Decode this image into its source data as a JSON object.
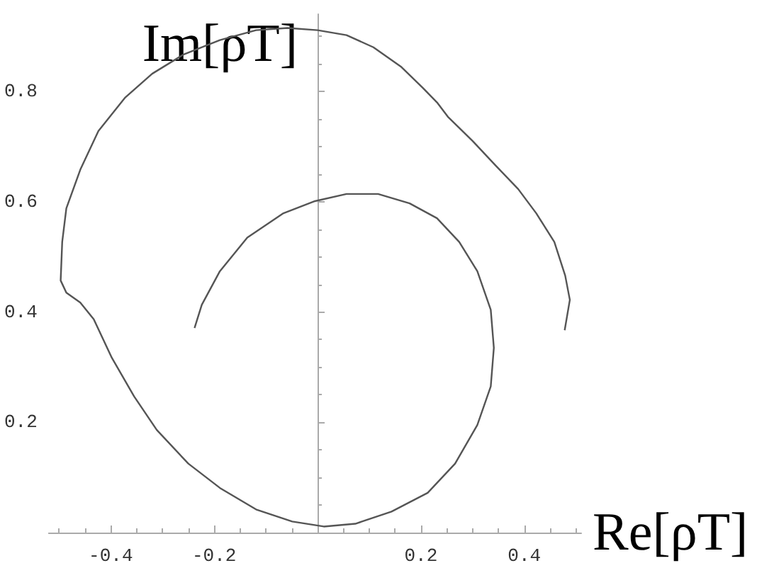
{
  "chart_data": {
    "type": "line",
    "xlabel": "Re[ρT]",
    "ylabel": "Im[ρT]",
    "xlim": [
      -0.52,
      0.51
    ],
    "ylim": [
      0,
      0.94
    ],
    "xticks": [
      -0.4,
      -0.2,
      0.2,
      0.4
    ],
    "yticks": [
      0.2,
      0.4,
      0.6,
      0.8
    ],
    "grid": false,
    "marker": "none",
    "line_style": "solid",
    "series": [
      {
        "color": "#555555",
        "x": [
          0.478,
          0.488,
          0.479,
          0.458,
          0.423,
          0.388,
          0.344,
          0.3,
          0.252,
          0.231,
          0.204,
          0.161,
          0.108,
          0.056,
          0,
          -0.058,
          -0.119,
          -0.189,
          -0.259,
          -0.32,
          -0.372,
          -0.424,
          -0.459,
          -0.486,
          -0.494,
          -0.497,
          -0.486,
          -0.459,
          -0.433,
          -0.398,
          -0.355,
          -0.311,
          -0.25,
          -0.189,
          -0.119,
          -0.049,
          0.012,
          0.073,
          0.143,
          0.213,
          0.266,
          0.309,
          0.335,
          0.341,
          0.335,
          0.309,
          0.274,
          0.231,
          0.178,
          0.117,
          0.056,
          -0.005,
          -0.066,
          -0.136,
          -0.189,
          -0.224,
          -0.238
        ],
        "values": [
          0.367,
          0.422,
          0.466,
          0.527,
          0.579,
          0.623,
          0.666,
          0.71,
          0.754,
          0.78,
          0.806,
          0.845,
          0.88,
          0.902,
          0.911,
          0.915,
          0.911,
          0.893,
          0.867,
          0.832,
          0.789,
          0.728,
          0.658,
          0.588,
          0.527,
          0.457,
          0.435,
          0.417,
          0.387,
          0.317,
          0.247,
          0.186,
          0.125,
          0.081,
          0.042,
          0.02,
          0.011,
          0.016,
          0.038,
          0.072,
          0.125,
          0.195,
          0.265,
          0.335,
          0.404,
          0.474,
          0.527,
          0.57,
          0.597,
          0.614,
          0.614,
          0.601,
          0.579,
          0.535,
          0.474,
          0.413,
          0.371
        ]
      }
    ]
  }
}
